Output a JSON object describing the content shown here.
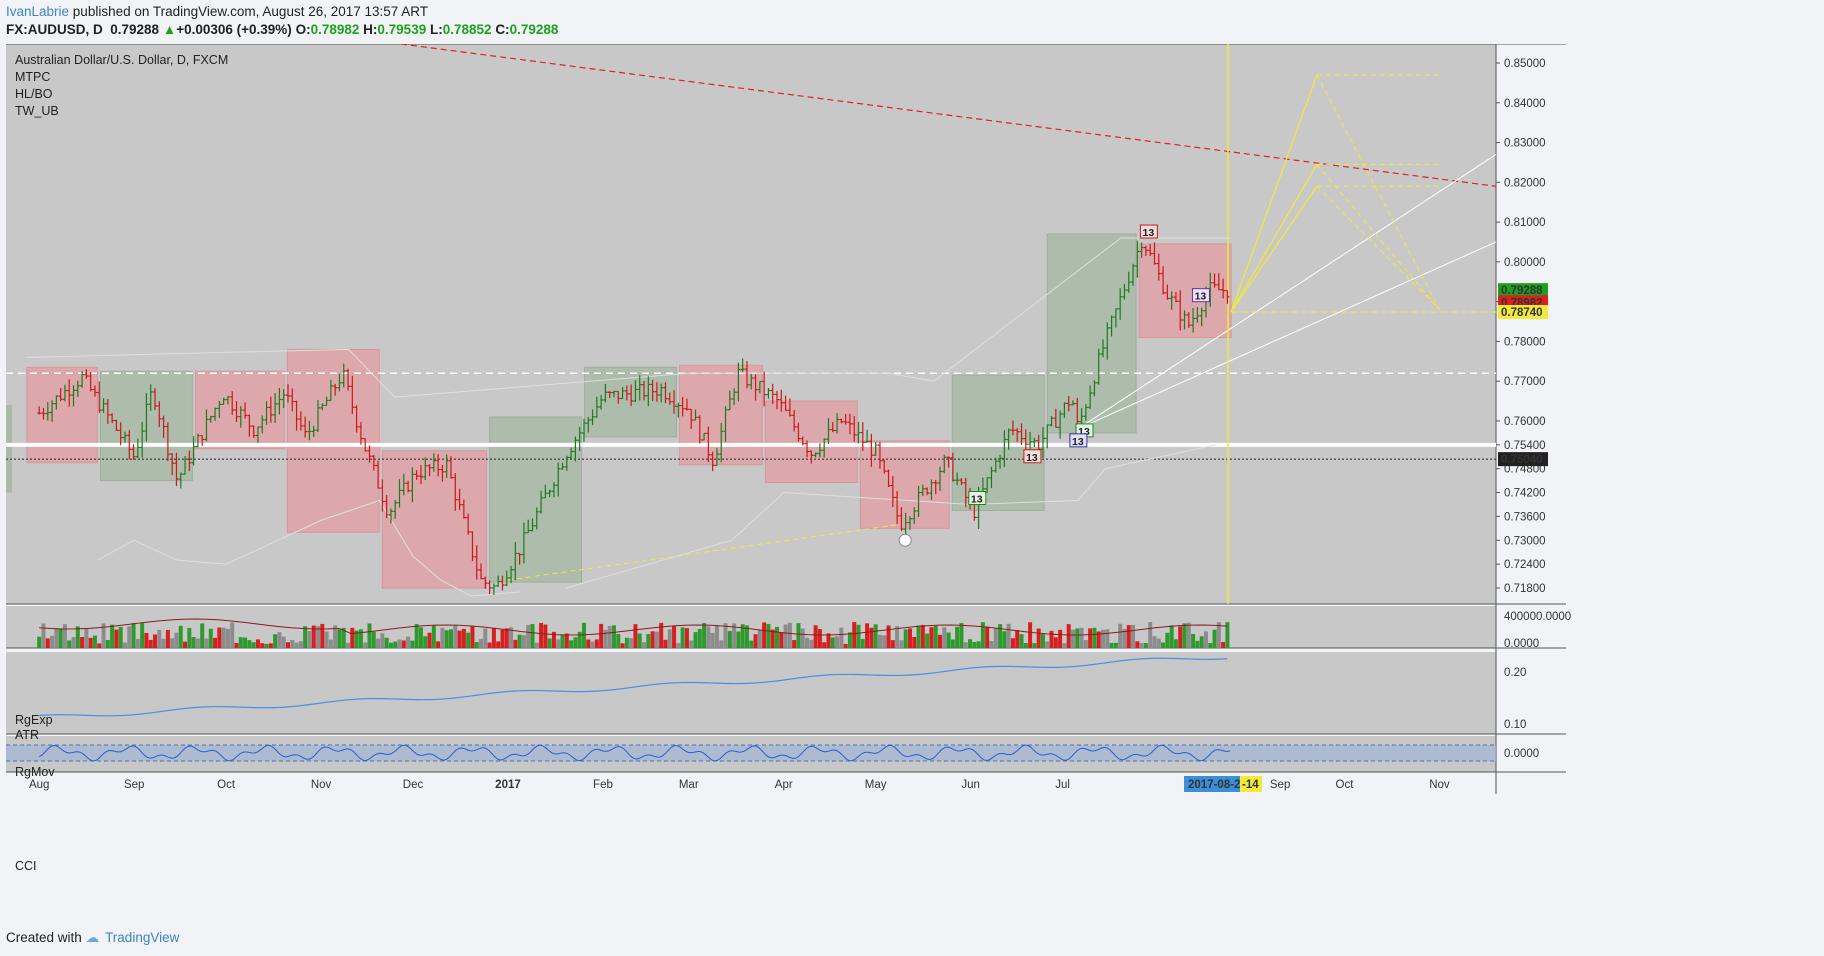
{
  "header": {
    "user": "IvanLabrie",
    "published_text": " published on TradingView.com, August 26, 2017 13:57 ART",
    "symbol": "FX:AUDUSD, D",
    "last": "0.79288",
    "arrow": "▲",
    "change": "+0.00306 (+0.39%)",
    "o_label": "O:",
    "o_value": "0.78982",
    "h_label": "H:",
    "h_value": "0.79539",
    "l_label": "L:",
    "l_value": "0.78852",
    "c_label": "C:",
    "c_value": "0.79288"
  },
  "legend": {
    "title": "Australian Dollar/U.S. Dollar, D, FXCM",
    "items": [
      "MTPC",
      "HL/BO",
      "TW_UB"
    ]
  },
  "pane_labels": {
    "volume": "RgExp",
    "atr": "ATR",
    "mov": "RgMov",
    "cci": "CCI"
  },
  "footer": {
    "created_with": "Created with",
    "brand": "TradingView"
  },
  "colors": {
    "background": "#c8c8c8",
    "up": "#1f7a1f",
    "down": "#cc1818",
    "red_box": "#e0a3a6",
    "green_box": "#a9bba6",
    "yellow": "#f2ea3a",
    "blue_line": "#4a90e2",
    "accent_link": "#3d85c6"
  },
  "chart_data": {
    "type": "ohlc",
    "title": "Australian Dollar/U.S. Dollar, D, FXCM",
    "price_ticks": [
      "0.85000",
      "0.84000",
      "0.83000",
      "0.82000",
      "0.81000",
      "0.80000",
      "0.79000",
      "0.78000",
      "0.77000",
      "0.76000",
      "0.75400",
      "0.74800",
      "0.74200",
      "0.73600",
      "0.73000",
      "0.72400",
      "0.71800"
    ],
    "price_tags": [
      {
        "label": "0.79288",
        "color": "#1e9e1e"
      },
      {
        "label": "0.78982",
        "color": "#e01d1d"
      },
      {
        "label": "0.78740",
        "color": "#f2ea3a"
      },
      {
        "label": "0.75040",
        "color": "#222222"
      }
    ],
    "time_labels": [
      "Aug",
      "Sep",
      "Oct",
      "Nov",
      "Dec",
      "2017",
      "Feb",
      "Mar",
      "Apr",
      "May",
      "Jun",
      "Jul",
      "2017-08-24",
      "-14",
      "Sep",
      "Oct",
      "Nov"
    ],
    "volume_ticks": [
      "400000.0000",
      "0.0000"
    ],
    "mov_ticks": [
      "0.20",
      "0.10"
    ],
    "cci_ticks": [
      "0.0000"
    ],
    "badges": [
      "13",
      "13",
      "13",
      "13",
      "13",
      "13"
    ],
    "anchors": [
      {
        "date": "2016-08-01",
        "price": 0.762
      },
      {
        "date": "2016-08-15",
        "price": 0.771
      },
      {
        "date": "2016-09-01",
        "price": 0.751
      },
      {
        "date": "2016-09-07",
        "price": 0.768
      },
      {
        "date": "2016-09-15",
        "price": 0.745
      },
      {
        "date": "2016-09-30",
        "price": 0.767
      },
      {
        "date": "2016-10-10",
        "price": 0.758
      },
      {
        "date": "2016-10-20",
        "price": 0.767
      },
      {
        "date": "2016-10-27",
        "price": 0.756
      },
      {
        "date": "2016-11-08",
        "price": 0.772
      },
      {
        "date": "2016-11-15",
        "price": 0.754
      },
      {
        "date": "2016-11-23",
        "price": 0.737
      },
      {
        "date": "2016-12-02",
        "price": 0.747
      },
      {
        "date": "2016-12-12",
        "price": 0.749
      },
      {
        "date": "2016-12-23",
        "price": 0.72
      },
      {
        "date": "2016-12-28",
        "price": 0.718
      },
      {
        "date": "2017-01-05",
        "price": 0.728
      },
      {
        "date": "2017-01-20",
        "price": 0.752
      },
      {
        "date": "2017-02-01",
        "price": 0.766
      },
      {
        "date": "2017-02-20",
        "price": 0.768
      },
      {
        "date": "2017-03-01",
        "price": 0.763
      },
      {
        "date": "2017-03-09",
        "price": 0.75
      },
      {
        "date": "2017-03-17",
        "price": 0.772
      },
      {
        "date": "2017-03-30",
        "price": 0.765
      },
      {
        "date": "2017-04-10",
        "price": 0.752
      },
      {
        "date": "2017-04-20",
        "price": 0.76
      },
      {
        "date": "2017-05-01",
        "price": 0.752
      },
      {
        "date": "2017-05-09",
        "price": 0.734
      },
      {
        "date": "2017-05-24",
        "price": 0.75
      },
      {
        "date": "2017-06-02",
        "price": 0.737
      },
      {
        "date": "2017-06-14",
        "price": 0.758
      },
      {
        "date": "2017-06-23",
        "price": 0.754
      },
      {
        "date": "2017-07-04",
        "price": 0.766
      },
      {
        "date": "2017-07-06",
        "price": 0.758
      },
      {
        "date": "2017-07-14",
        "price": 0.778
      },
      {
        "date": "2017-07-27",
        "price": 0.806
      },
      {
        "date": "2017-08-04",
        "price": 0.792
      },
      {
        "date": "2017-08-11",
        "price": 0.784
      },
      {
        "date": "2017-08-18",
        "price": 0.793
      },
      {
        "date": "2017-08-25",
        "price": 0.7929
      }
    ]
  }
}
